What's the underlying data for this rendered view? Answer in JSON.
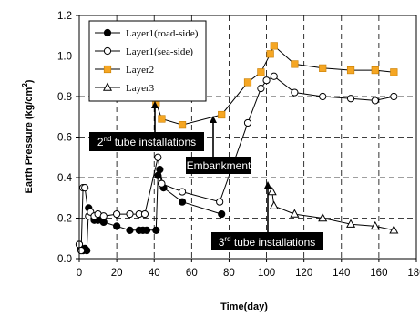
{
  "chart_data": {
    "type": "line",
    "title": "",
    "xlabel": "Time(day)",
    "ylabel": "Earth Pressure (kg/cm²)",
    "ylabel_base": "Earth Pressure (kg/cm",
    "ylabel_sup": "2",
    "ylabel_end": ")",
    "xlim": [
      0,
      180
    ],
    "ylim": [
      0,
      1.2
    ],
    "xticks": [
      "0",
      "20",
      "40",
      "60",
      "80",
      "100",
      "120",
      "140",
      "160",
      "180"
    ],
    "yticks": [
      "0.0",
      "0.2",
      "0.4",
      "0.6",
      "0.8",
      "1.0",
      "1.2"
    ],
    "grid": "dashed",
    "legend_position": "top-left",
    "series": [
      {
        "name": "Layer1(road-side)",
        "marker": "filled-circle",
        "color": "#000000",
        "points": [
          [
            0,
            0.07
          ],
          [
            1,
            0.05
          ],
          [
            2,
            0.04
          ],
          [
            3,
            0.05
          ],
          [
            4,
            0.04
          ],
          [
            5,
            0.25
          ],
          [
            6,
            0.22
          ],
          [
            8,
            0.19
          ],
          [
            10,
            0.19
          ],
          [
            13,
            0.18
          ],
          [
            20,
            0.16
          ],
          [
            27,
            0.14
          ],
          [
            32,
            0.14
          ],
          [
            34,
            0.14
          ],
          [
            36,
            0.14
          ],
          [
            41,
            0.14
          ],
          [
            42,
            0.41
          ],
          [
            43,
            0.44
          ],
          [
            45,
            0.35
          ],
          [
            55,
            0.28
          ],
          [
            76,
            0.22
          ]
        ]
      },
      {
        "name": "Layer1(sea-side)",
        "marker": "open-circle",
        "color": "#000000",
        "points": [
          [
            0,
            0.07
          ],
          [
            1,
            0.04
          ],
          [
            2,
            0.35
          ],
          [
            3,
            0.35
          ],
          [
            5,
            0.21
          ],
          [
            6,
            0.23
          ],
          [
            8,
            0.21
          ],
          [
            10,
            0.22
          ],
          [
            13,
            0.21
          ],
          [
            20,
            0.22
          ],
          [
            27,
            0.22
          ],
          [
            32,
            0.22
          ],
          [
            35,
            0.22
          ],
          [
            42,
            0.5
          ],
          [
            44,
            0.37
          ],
          [
            55,
            0.33
          ],
          [
            75,
            0.28
          ],
          [
            90,
            0.67
          ],
          [
            97,
            0.84
          ],
          [
            100,
            0.88
          ],
          [
            104,
            0.9
          ],
          [
            115,
            0.82
          ],
          [
            130,
            0.8
          ],
          [
            145,
            0.79
          ],
          [
            158,
            0.78
          ],
          [
            168,
            0.8
          ]
        ]
      },
      {
        "name": "Layer2",
        "marker": "filled-square",
        "color": "#f5a623",
        "points": [
          [
            41,
            0.77
          ],
          [
            44,
            0.69
          ],
          [
            55,
            0.66
          ],
          [
            76,
            0.71
          ],
          [
            90,
            0.87
          ],
          [
            97,
            0.92
          ],
          [
            102,
            1.01
          ],
          [
            104,
            1.05
          ],
          [
            115,
            0.96
          ],
          [
            130,
            0.94
          ],
          [
            145,
            0.93
          ],
          [
            158,
            0.93
          ],
          [
            168,
            0.92
          ]
        ]
      },
      {
        "name": "Layer3",
        "marker": "open-triangle",
        "color": "#000000",
        "points": [
          [
            103,
            0.33
          ],
          [
            104,
            0.26
          ],
          [
            115,
            0.22
          ],
          [
            130,
            0.2
          ],
          [
            145,
            0.17
          ],
          [
            158,
            0.16
          ],
          [
            168,
            0.14
          ]
        ]
      }
    ],
    "annotations": [
      {
        "pre": "2",
        "sup": "nd",
        "post": " tube installations"
      },
      {
        "pre": "Embankment",
        "sup": "",
        "post": ""
      },
      {
        "pre": "3",
        "sup": "rd",
        "post": " tube installations"
      }
    ]
  }
}
